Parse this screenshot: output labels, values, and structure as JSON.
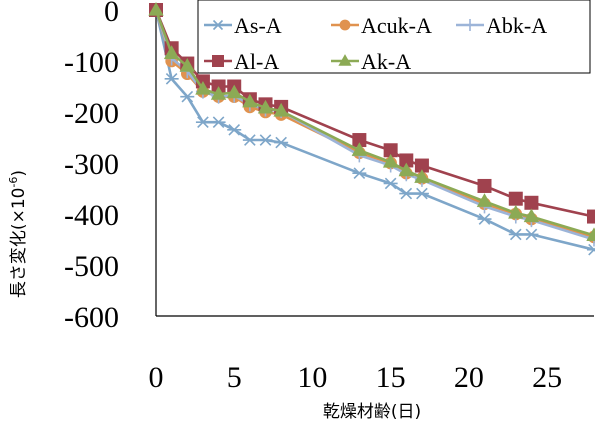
{
  "chart_data": {
    "type": "line",
    "xlabel": "乾燥材齢(日)",
    "ylabel_main": "長さ変化(×10",
    "ylabel_sup": "-6",
    "ylabel_end": ")",
    "xlim": [
      0,
      28
    ],
    "ylim": [
      -600,
      0
    ],
    "x_ticks": [
      0,
      5,
      10,
      15,
      20,
      25
    ],
    "y_ticks": [
      0,
      -100,
      -200,
      -300,
      -400,
      -500,
      -600
    ],
    "grid": false,
    "legend_position": "top-right",
    "series": [
      {
        "name": "As-A",
        "color": "#7ea6c9",
        "marker": "asterisk",
        "x": [
          0,
          1,
          2,
          3,
          4,
          5,
          6,
          7,
          8,
          13,
          15,
          16,
          17,
          21,
          23,
          24,
          28
        ],
        "y": [
          0,
          -135,
          -170,
          -220,
          -220,
          -235,
          -255,
          -255,
          -260,
          -320,
          -340,
          -360,
          -360,
          -410,
          -440,
          -440,
          -470
        ]
      },
      {
        "name": "Acuk-A",
        "color": "#e0924f",
        "marker": "circle",
        "x": [
          0,
          1,
          2,
          3,
          4,
          5,
          6,
          7,
          8,
          13,
          15,
          16,
          17,
          21,
          23,
          24,
          28
        ],
        "y": [
          0,
          -100,
          -125,
          -160,
          -170,
          -170,
          -190,
          -200,
          -205,
          -280,
          -300,
          -320,
          -330,
          -380,
          -400,
          -410,
          -445
        ]
      },
      {
        "name": "Abk-A",
        "color": "#9cb4d8",
        "marker": "plus",
        "x": [
          0,
          1,
          2,
          3,
          4,
          5,
          6,
          7,
          8,
          13,
          15,
          16,
          17,
          21,
          23,
          24,
          28
        ],
        "y": [
          0,
          -95,
          -120,
          -160,
          -170,
          -168,
          -185,
          -195,
          -198,
          -285,
          -305,
          -322,
          -333,
          -385,
          -405,
          -412,
          -450
        ]
      },
      {
        "name": "Al-A",
        "color": "#a0424e",
        "marker": "square",
        "x": [
          0,
          1,
          2,
          3,
          4,
          5,
          6,
          7,
          8,
          13,
          15,
          16,
          17,
          21,
          23,
          24,
          28
        ],
        "y": [
          0,
          -75,
          -105,
          -140,
          -150,
          -150,
          -175,
          -185,
          -190,
          -255,
          -275,
          -295,
          -305,
          -345,
          -370,
          -378,
          -405
        ]
      },
      {
        "name": "Ak-A",
        "color": "#8caa55",
        "marker": "triangle",
        "x": [
          0,
          1,
          2,
          3,
          4,
          5,
          6,
          7,
          8,
          13,
          15,
          16,
          17,
          21,
          23,
          24,
          28
        ],
        "y": [
          0,
          -85,
          -110,
          -155,
          -165,
          -162,
          -180,
          -192,
          -198,
          -275,
          -298,
          -315,
          -328,
          -375,
          -398,
          -405,
          -442
        ]
      }
    ]
  }
}
